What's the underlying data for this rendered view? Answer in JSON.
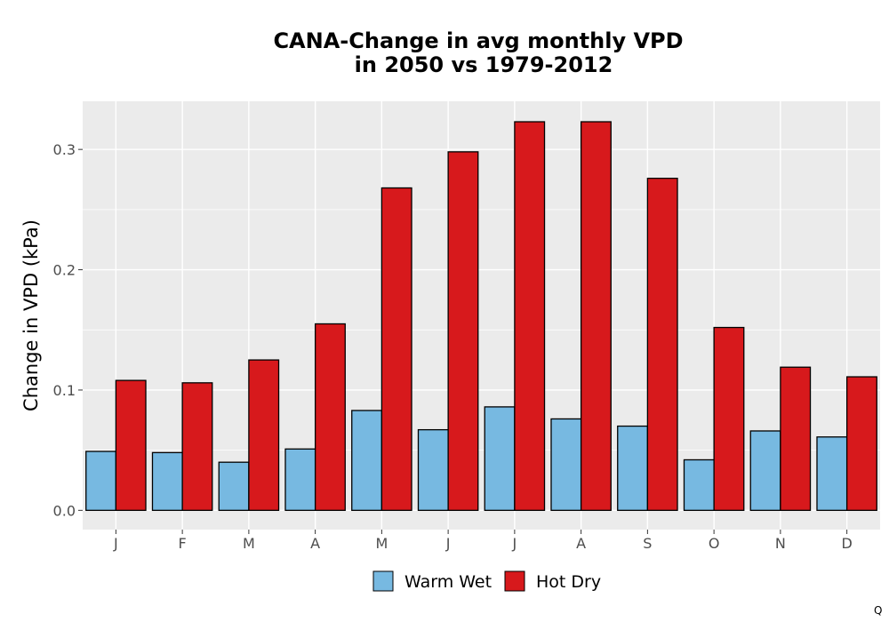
{
  "chart_data": {
    "type": "bar",
    "title": "CANA-Change in avg monthly VPD",
    "subtitle": "in 2050 vs 1979-2012",
    "xlabel": "",
    "ylabel": "Change in VPD (kPa)",
    "categories": [
      "J",
      "F",
      "M",
      "A",
      "M",
      "J",
      "J",
      "A",
      "S",
      "O",
      "N",
      "D"
    ],
    "series": [
      {
        "name": "Warm Wet",
        "color": "#77b9e1",
        "values": [
          0.049,
          0.048,
          0.04,
          0.051,
          0.083,
          0.067,
          0.086,
          0.076,
          0.07,
          0.042,
          0.066,
          0.061
        ]
      },
      {
        "name": "Hot Dry",
        "color": "#d7191c",
        "values": [
          0.108,
          0.106,
          0.125,
          0.155,
          0.268,
          0.298,
          0.323,
          0.323,
          0.276,
          0.152,
          0.119,
          0.111
        ]
      }
    ],
    "ylim": [
      -0.016,
      0.34
    ],
    "yticks": [
      0.0,
      0.1,
      0.2,
      0.3
    ],
    "ytick_labels": [
      "0.0",
      "0.1",
      "0.2",
      "0.3"
    ],
    "grid": true,
    "legend_position": "bottom",
    "panel_color": "#ebebeb",
    "grid_color": "#ffffff"
  },
  "corner_mark": "Q"
}
